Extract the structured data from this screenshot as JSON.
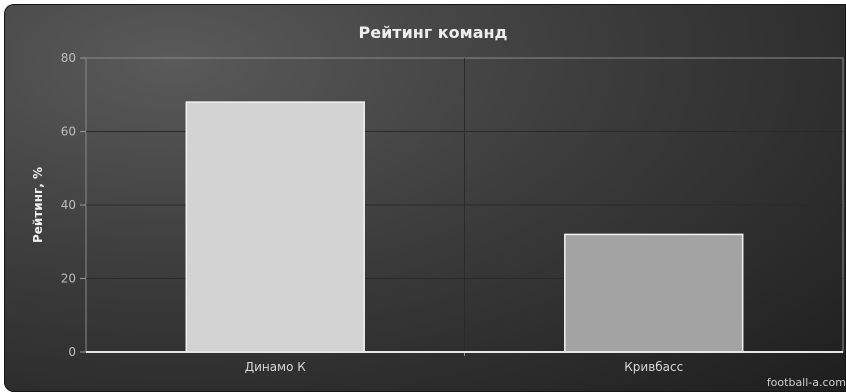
{
  "chart_data": {
    "type": "bar",
    "title": "Рейтинг команд",
    "ylabel": "Рейтинг, %",
    "xlabel": "",
    "categories": [
      "Динамо К",
      "Кривбасс"
    ],
    "values": [
      68,
      32
    ],
    "colors": [
      "#d3d3d3",
      "#a3a3a3"
    ],
    "ylim": [
      0,
      80
    ],
    "yticks": [
      0,
      20,
      40,
      60,
      80
    ],
    "grid": true
  },
  "credit": "football-a.com"
}
